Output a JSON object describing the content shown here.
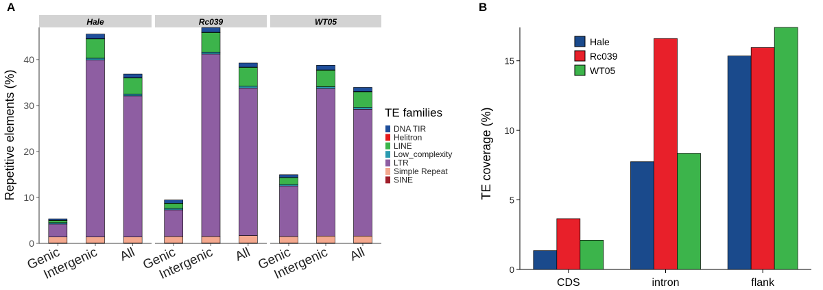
{
  "chart_data": [
    {
      "id": "A",
      "panel_label": "A",
      "type": "stacked-bar",
      "ylabel": "Repetitive elements (%)",
      "ylim": [
        0,
        47
      ],
      "yticks": [
        0,
        10,
        20,
        30,
        40
      ],
      "categories": [
        "Genic",
        "Intergenic",
        "All"
      ],
      "legend_title": "TE families",
      "families": [
        {
          "name": "SINE",
          "color": "#a01e2a"
        },
        {
          "name": "Simple Repeat",
          "color": "#f4a98f"
        },
        {
          "name": "LTR",
          "color": "#8e5ea2"
        },
        {
          "name": "Low_complexity",
          "color": "#2a9ab0"
        },
        {
          "name": "LINE",
          "color": "#3cb44b"
        },
        {
          "name": "Helitron",
          "color": "#e41a1c"
        },
        {
          "name": "DNA TIR",
          "color": "#1f4e9a"
        }
      ],
      "legend_order": [
        "DNA TIR",
        "Helitron",
        "LINE",
        "Low_complexity",
        "LTR",
        "Simple Repeat",
        "SINE"
      ],
      "facets": [
        {
          "name": "Hale",
          "stacks": [
            [
              0.1,
              1.3,
              2.8,
              0.3,
              0.5,
              0.05,
              0.3
            ],
            [
              0.1,
              1.3,
              38.5,
              0.4,
              4.2,
              0.05,
              1.0
            ],
            [
              0.1,
              1.3,
              30.7,
              0.4,
              3.5,
              0.05,
              0.8
            ]
          ]
        },
        {
          "name": "Rc039",
          "stacks": [
            [
              0.1,
              1.4,
              5.8,
              0.3,
              1.1,
              0.05,
              0.7
            ],
            [
              0.1,
              1.4,
              39.7,
              0.4,
              4.3,
              0.05,
              1.0
            ],
            [
              0.1,
              1.6,
              32.1,
              0.4,
              4.1,
              0.05,
              0.9
            ]
          ]
        },
        {
          "name": "WT05",
          "stacks": [
            [
              0.1,
              1.4,
              11.0,
              0.3,
              1.5,
              0.05,
              0.6
            ],
            [
              0.1,
              1.5,
              32.1,
              0.4,
              3.6,
              0.05,
              1.0
            ],
            [
              0.1,
              1.5,
              27.6,
              0.4,
              3.4,
              0.05,
              0.9
            ]
          ]
        }
      ]
    },
    {
      "id": "B",
      "panel_label": "B",
      "type": "bar",
      "ylabel": "TE coverage (%)",
      "ylim": [
        0,
        17.4
      ],
      "yticks": [
        0,
        5,
        10,
        15
      ],
      "categories": [
        "CDS",
        "intron",
        "flank"
      ],
      "series": [
        {
          "name": "Hale",
          "color": "#1a4a8c",
          "values": [
            1.35,
            7.75,
            15.35
          ]
        },
        {
          "name": "Rc039",
          "color": "#e8202a",
          "values": [
            3.65,
            16.6,
            15.95
          ]
        },
        {
          "name": "WT05",
          "color": "#3cb44b",
          "values": [
            2.1,
            8.35,
            17.4
          ]
        }
      ]
    }
  ]
}
